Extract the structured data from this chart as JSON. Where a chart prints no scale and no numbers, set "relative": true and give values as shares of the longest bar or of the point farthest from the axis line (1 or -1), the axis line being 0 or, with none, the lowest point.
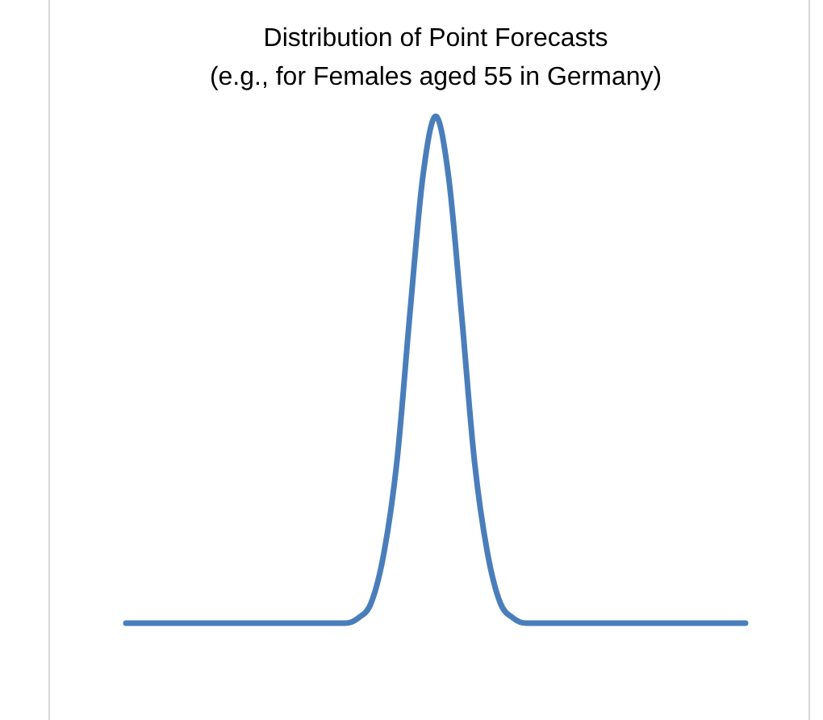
{
  "chart_data": {
    "type": "line",
    "title": "Distribution of Point Forecasts\n(e.g., for Females aged 55 in Germany)",
    "relative": true,
    "legend": false,
    "marker": "none",
    "line_style": "solid",
    "categories": [
      null,
      null,
      null,
      null,
      null,
      null,
      null,
      null,
      null,
      null,
      null,
      null,
      null,
      null,
      null,
      null,
      null,
      null,
      null,
      null,
      null,
      null,
      null,
      null,
      null,
      null,
      null,
      null,
      null,
      null,
      null,
      null,
      null,
      null,
      null,
      null,
      null,
      null,
      null,
      null,
      null,
      null,
      null,
      null,
      null,
      null,
      null,
      null,
      null
    ],
    "series": [
      {
        "color": "#4a7ebb",
        "values": [
          0,
          0,
          0,
          0,
          0,
          0,
          0,
          0,
          0,
          0,
          0,
          0,
          0,
          0,
          0,
          0,
          0,
          0,
          0.01,
          0.04,
          0.14,
          0.32,
          0.61,
          0.88,
          1,
          0.88,
          0.61,
          0.32,
          0.14,
          0.04,
          0.01,
          0,
          0,
          0,
          0,
          0,
          0,
          0,
          0,
          0,
          0,
          0,
          0,
          0,
          0,
          0,
          0,
          0,
          0
        ]
      }
    ]
  }
}
